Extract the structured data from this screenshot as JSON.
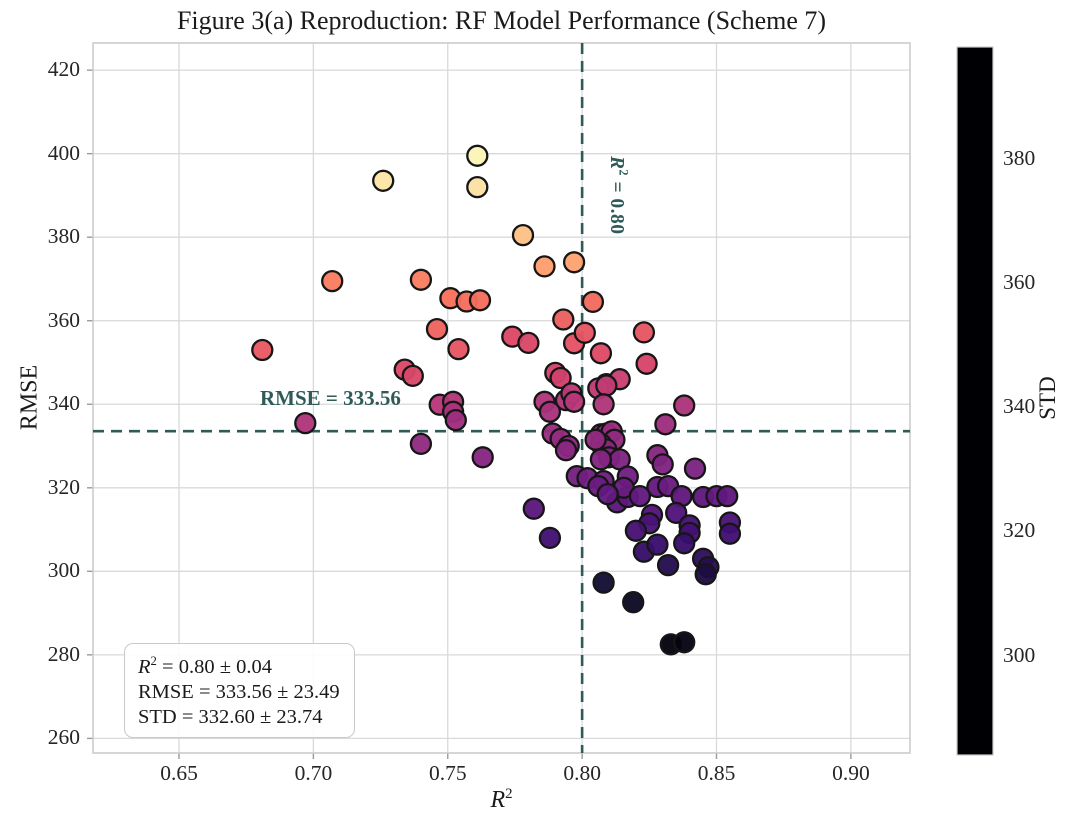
{
  "chart_data": {
    "type": "scatter",
    "title": "Figure 3(a) Reproduction: RF Model Performance (Scheme 7)",
    "xlabel": {
      "main": "R",
      "sup": "2"
    },
    "ylabel": "RMSE",
    "xlim": [
      0.618,
      0.922
    ],
    "ylim": [
      256.5,
      426.5
    ],
    "xticks": [
      0.65,
      0.7,
      0.75,
      0.8,
      0.85,
      0.9
    ],
    "xtick_labels": [
      "0.65",
      "0.70",
      "0.75",
      "0.80",
      "0.85",
      "0.90"
    ],
    "yticks": [
      260,
      280,
      300,
      320,
      340,
      360,
      380,
      400,
      420
    ],
    "ytick_labels": [
      "260",
      "280",
      "300",
      "320",
      "340",
      "360",
      "380",
      "400",
      "420"
    ],
    "grid": true,
    "legend": "none",
    "marker": {
      "radius": 10,
      "edge_color": "#161616",
      "edge_width": 2.3,
      "opacity": 0.96
    },
    "grid_color": "#d9d9d9",
    "spine_color": "#cccccc",
    "tick_color": "#9a9a9a",
    "crosshair": {
      "x_value": 0.8,
      "y_value": 333.56,
      "color": "#2e5b58",
      "x_label": {
        "prefix": "R",
        "sup": "2",
        "rest": " = 0.80"
      },
      "y_label": "RMSE = 333.56"
    },
    "annotation": {
      "line1": {
        "prefix": "R",
        "sup": "2",
        "rest": " = 0.80 ± 0.04"
      },
      "line2": "RMSE = 333.56 ± 23.49",
      "line3": "STD = 332.60 ± 23.74"
    },
    "colorbar": {
      "label": "STD",
      "min": 284,
      "max": 398,
      "ticks": [
        300,
        320,
        340,
        360,
        380
      ],
      "tick_labels": [
        "300",
        "320",
        "340",
        "360",
        "380"
      ],
      "colormap": "magma",
      "colormap_stops": [
        [
          0.0,
          "#000004"
        ],
        [
          0.1,
          "#140e36"
        ],
        [
          0.2,
          "#3b0f70"
        ],
        [
          0.3,
          "#641980"
        ],
        [
          0.4,
          "#8c2981"
        ],
        [
          0.5,
          "#b73779"
        ],
        [
          0.6,
          "#de4966"
        ],
        [
          0.7,
          "#f7705c"
        ],
        [
          0.8,
          "#fe9f6d"
        ],
        [
          0.9,
          "#fecf92"
        ],
        [
          1.0,
          "#fcfdbf"
        ]
      ]
    },
    "points_format": [
      "r_squared",
      "rmse",
      "std"
    ],
    "points": [
      [
        0.761,
        399.5,
        396
      ],
      [
        0.761,
        392.0,
        391
      ],
      [
        0.726,
        393.5,
        392
      ],
      [
        0.778,
        380.5,
        383
      ],
      [
        0.786,
        373.0,
        375
      ],
      [
        0.797,
        374.0,
        376
      ],
      [
        0.707,
        369.5,
        367
      ],
      [
        0.74,
        369.8,
        367
      ],
      [
        0.751,
        365.4,
        364
      ],
      [
        0.757,
        364.6,
        363
      ],
      [
        0.762,
        364.9,
        363
      ],
      [
        0.746,
        358.0,
        360
      ],
      [
        0.681,
        353.0,
        357
      ],
      [
        0.754,
        353.2,
        356
      ],
      [
        0.734,
        348.3,
        352
      ],
      [
        0.737,
        346.8,
        351
      ],
      [
        0.774,
        356.2,
        352
      ],
      [
        0.78,
        354.7,
        351
      ],
      [
        0.804,
        364.5,
        362
      ],
      [
        0.793,
        360.3,
        359
      ],
      [
        0.797,
        354.6,
        355
      ],
      [
        0.801,
        357.1,
        356
      ],
      [
        0.823,
        357.2,
        356
      ],
      [
        0.807,
        352.2,
        353
      ],
      [
        0.824,
        349.7,
        350
      ],
      [
        0.79,
        347.5,
        349
      ],
      [
        0.792,
        346.3,
        348
      ],
      [
        0.809,
        344.8,
        345
      ],
      [
        0.814,
        346.0,
        346
      ],
      [
        0.697,
        335.5,
        339
      ],
      [
        0.747,
        339.9,
        341
      ],
      [
        0.752,
        340.6,
        340
      ],
      [
        0.752,
        338.2,
        338
      ],
      [
        0.753,
        336.2,
        334
      ],
      [
        0.786,
        340.6,
        339
      ],
      [
        0.788,
        338.2,
        337
      ],
      [
        0.794,
        341.0,
        340
      ],
      [
        0.796,
        342.6,
        342
      ],
      [
        0.797,
        340.6,
        341
      ],
      [
        0.806,
        343.8,
        343
      ],
      [
        0.809,
        344.5,
        344
      ],
      [
        0.808,
        340.0,
        339
      ],
      [
        0.838,
        339.7,
        338
      ],
      [
        0.831,
        335.2,
        334
      ],
      [
        0.789,
        333.0,
        333
      ],
      [
        0.792,
        331.7,
        332
      ],
      [
        0.795,
        330.0,
        330
      ],
      [
        0.794,
        329.0,
        329
      ],
      [
        0.807,
        332.8,
        333
      ],
      [
        0.809,
        333.0,
        332
      ],
      [
        0.811,
        333.5,
        333
      ],
      [
        0.812,
        331.5,
        331
      ],
      [
        0.807,
        330.5,
        330
      ],
      [
        0.809,
        329.2,
        329
      ],
      [
        0.81,
        327.3,
        327
      ],
      [
        0.814,
        326.8,
        326
      ],
      [
        0.807,
        326.8,
        327
      ],
      [
        0.74,
        330.5,
        331
      ],
      [
        0.763,
        327.3,
        328
      ],
      [
        0.782,
        315.0,
        316
      ],
      [
        0.788,
        308.0,
        309
      ],
      [
        0.808,
        297.3,
        295
      ],
      [
        0.819,
        292.6,
        291
      ],
      [
        0.833,
        282.5,
        286
      ],
      [
        0.838,
        283.0,
        287
      ],
      [
        0.798,
        322.8,
        323
      ],
      [
        0.802,
        322.3,
        322
      ],
      [
        0.808,
        321.6,
        321
      ],
      [
        0.806,
        320.4,
        320
      ],
      [
        0.817,
        322.7,
        322
      ],
      [
        0.813,
        316.5,
        316
      ],
      [
        0.817,
        317.8,
        317
      ],
      [
        0.828,
        320.2,
        319
      ],
      [
        0.832,
        320.4,
        320
      ],
      [
        0.837,
        318.0,
        317
      ],
      [
        0.845,
        317.8,
        317
      ],
      [
        0.85,
        318.0,
        318
      ],
      [
        0.854,
        318.0,
        317
      ],
      [
        0.828,
        327.8,
        328
      ],
      [
        0.83,
        325.6,
        326
      ],
      [
        0.842,
        324.6,
        325
      ],
      [
        0.826,
        313.5,
        313
      ],
      [
        0.825,
        311.5,
        311
      ],
      [
        0.835,
        314.0,
        313
      ],
      [
        0.84,
        311.0,
        310
      ],
      [
        0.84,
        309.2,
        309
      ],
      [
        0.855,
        311.7,
        311
      ],
      [
        0.855,
        309.0,
        308
      ],
      [
        0.82,
        309.7,
        310
      ],
      [
        0.823,
        304.7,
        305
      ],
      [
        0.828,
        306.4,
        306
      ],
      [
        0.838,
        306.7,
        306
      ],
      [
        0.845,
        303.0,
        303
      ],
      [
        0.847,
        301.0,
        301
      ],
      [
        0.832,
        301.5,
        300
      ],
      [
        0.846,
        299.3,
        298
      ],
      [
        0.805,
        331.5,
        331
      ],
      [
        0.8155,
        320.0,
        320
      ],
      [
        0.8095,
        318.5,
        318
      ],
      [
        0.8215,
        318.0,
        318
      ]
    ]
  }
}
